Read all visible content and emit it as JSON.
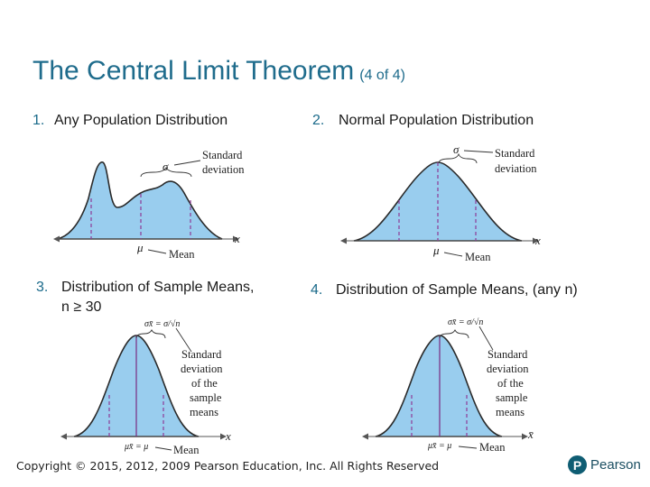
{
  "slide": {
    "title": "The Central Limit Theorem",
    "title_suffix": "(4 of 4)",
    "copyright": "Copyright © 2015, 2012, 2009 Pearson Education, Inc. All Rights Reserved",
    "logo_text": "Pearson",
    "logo_mark": "P"
  },
  "panels": [
    {
      "number": "1.",
      "caption": "Any Population Distribution",
      "sigma": "σ",
      "std_label": [
        "Standard",
        "deviation"
      ],
      "mean_symbol": "μ",
      "mean_label": "Mean",
      "axis_label": "x"
    },
    {
      "number": "2.",
      "caption": "Normal Population Distribution",
      "sigma": "σ",
      "std_label": [
        "Standard",
        "deviation"
      ],
      "mean_symbol": "μ",
      "mean_label": "Mean",
      "axis_label": "x"
    },
    {
      "number": "3.",
      "caption": "Distribution of Sample Means,",
      "caption_line2": "n ≥ 30",
      "sigma": "σx̄ = σ/√n",
      "std_label": [
        "Standard",
        "deviation",
        "of the",
        "sample",
        "means"
      ],
      "mean_symbol": "μx̄ = μ",
      "mean_label": "Mean",
      "axis_label": "x"
    },
    {
      "number": "4.",
      "caption": "Distribution of Sample Means, (any n)",
      "sigma": "σx̄ = σ/√n",
      "std_label": [
        "Standard",
        "deviation",
        "of the",
        "sample",
        "means"
      ],
      "mean_symbol": "μx̄ = μ",
      "mean_label": "Mean",
      "axis_label": "x̄"
    }
  ],
  "colors": {
    "title": "#1f6c8c",
    "fill": "#99cdee",
    "dash": "#8e3a96"
  }
}
